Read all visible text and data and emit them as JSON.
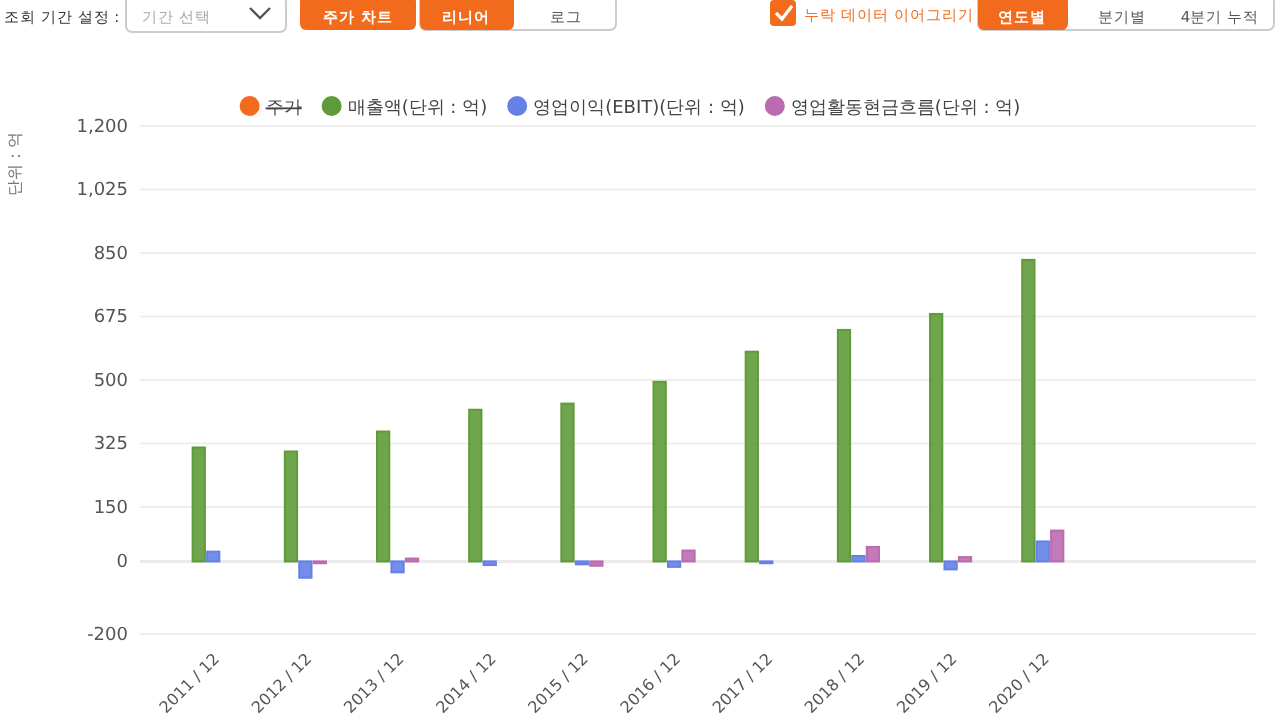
{
  "chart_data": {
    "type": "bar",
    "ylabel": "단위 : 억",
    "categories": [
      null,
      "2011 / 12",
      "2012 / 12",
      "2013 / 12",
      "2014 / 12",
      "2015 / 12",
      "2016 / 12",
      "2017 / 12",
      "2018 / 12",
      "2019 / 12",
      "2020 / 12",
      null,
      null
    ],
    "series": [
      {
        "name": "주가",
        "color": "#f26b1d",
        "values": [
          null,
          null,
          null,
          null,
          null,
          null,
          null,
          null,
          null,
          null,
          null,
          null,
          null
        ]
      },
      {
        "name": "매출액(단위 : 억)",
        "color": "#5f9b3a",
        "values": [
          null,
          314,
          303,
          358,
          418,
          435,
          495,
          578,
          638,
          682,
          831,
          null,
          null
        ]
      },
      {
        "name": "영업이익(EBIT)(단위 : 억)",
        "color": "#6581e6",
        "values": [
          null,
          27,
          -45,
          -30,
          -10,
          -8,
          -15,
          -5,
          15,
          -22,
          55,
          null,
          null
        ]
      },
      {
        "name": "영업활동현금흐름(단위 : 억)",
        "color": "#bb6bb0",
        "values": [
          null,
          null,
          -5,
          8,
          null,
          -12,
          30,
          null,
          40,
          12,
          85,
          null,
          null
        ]
      }
    ],
    "ylim": [
      -200,
      1200
    ],
    "yticks": [
      -200,
      0,
      150,
      325,
      500,
      675,
      850,
      {
        "value": 1025,
        "label": "1,025"
      },
      {
        "value": 1200,
        "label": "1,200"
      }
    ],
    "grid": "y",
    "legend": "top",
    "annotations": [
      "조회 기간 설정 :",
      "기간 선택",
      "주가 차트",
      "리니어",
      "로그",
      "누락 데이터 이어그리기",
      "연도별",
      "분기별",
      "4분기 누적"
    ]
  }
}
